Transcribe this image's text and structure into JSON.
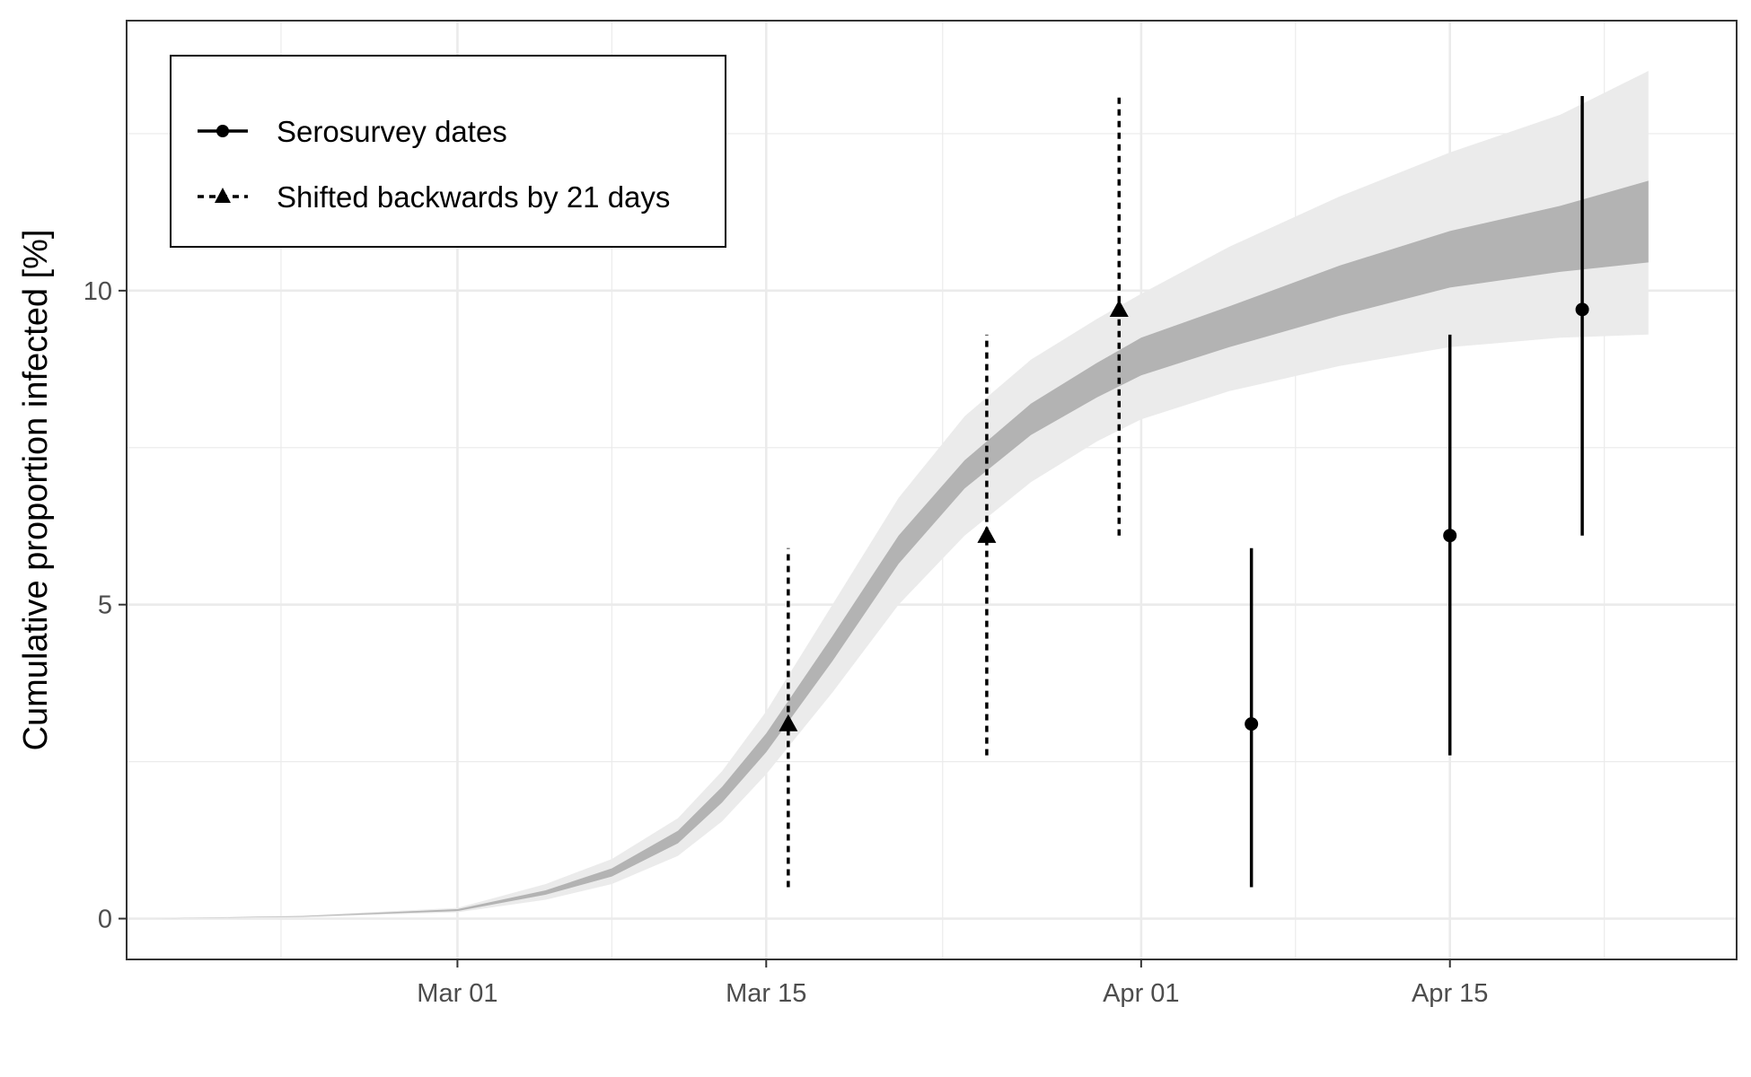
{
  "chart_data": {
    "type": "line",
    "title": "",
    "xlabel": "",
    "ylabel": "Cumulative proportion infected [%]",
    "x_type": "date",
    "xlim": [
      "2020-02-15",
      "2020-04-28"
    ],
    "ylim": [
      -0.65,
      14.3
    ],
    "x_ticks": [
      {
        "date": "2020-03-01",
        "label": "Mar 01"
      },
      {
        "date": "2020-03-15",
        "label": "Mar 15"
      },
      {
        "date": "2020-04-01",
        "label": "Apr 01"
      },
      {
        "date": "2020-04-15",
        "label": "Apr 15"
      }
    ],
    "x_minor_ticks": [
      "2020-02-22",
      "2020-03-08",
      "2020-03-23",
      "2020-04-08",
      "2020-04-22"
    ],
    "y_ticks": [
      {
        "value": 0,
        "label": "0"
      },
      {
        "value": 5,
        "label": "5"
      },
      {
        "value": 10,
        "label": "10"
      }
    ],
    "y_minor_ticks": [
      2.5,
      7.5,
      12.5
    ],
    "grid": true,
    "legend": {
      "position": "top-left",
      "entries": [
        {
          "label": "Serosurvey dates",
          "marker": "circle",
          "linestyle": "solid"
        },
        {
          "label": "Shifted backwards by 21 days",
          "marker": "triangle",
          "linestyle": "dashed"
        }
      ]
    },
    "bands": [
      {
        "role": "outer-interval",
        "color": "#ebebeb",
        "x": [
          "2020-02-16",
          "2020-02-23",
          "2020-03-01",
          "2020-03-05",
          "2020-03-08",
          "2020-03-11",
          "2020-03-13",
          "2020-03-15",
          "2020-03-18",
          "2020-03-21",
          "2020-03-24",
          "2020-03-27",
          "2020-03-30",
          "2020-04-01",
          "2020-04-05",
          "2020-04-10",
          "2020-04-15",
          "2020-04-20",
          "2020-04-24"
        ],
        "lower": [
          0.0,
          0.02,
          0.1,
          0.3,
          0.55,
          1.0,
          1.55,
          2.3,
          3.6,
          5.0,
          6.1,
          6.95,
          7.6,
          7.95,
          8.4,
          8.8,
          9.1,
          9.25,
          9.3
        ],
        "upper": [
          0.0,
          0.05,
          0.17,
          0.55,
          0.95,
          1.6,
          2.35,
          3.3,
          5.0,
          6.7,
          8.0,
          8.9,
          9.55,
          9.95,
          10.7,
          11.5,
          12.2,
          12.8,
          13.5
        ]
      },
      {
        "role": "inner-interval",
        "color": "#b3b3b3",
        "x": [
          "2020-02-16",
          "2020-02-23",
          "2020-03-01",
          "2020-03-05",
          "2020-03-08",
          "2020-03-11",
          "2020-03-13",
          "2020-03-15",
          "2020-03-18",
          "2020-03-21",
          "2020-03-24",
          "2020-03-27",
          "2020-03-30",
          "2020-04-01",
          "2020-04-05",
          "2020-04-10",
          "2020-04-15",
          "2020-04-20",
          "2020-04-24"
        ],
        "lower": [
          0.0,
          0.03,
          0.12,
          0.38,
          0.67,
          1.2,
          1.85,
          2.65,
          4.1,
          5.65,
          6.85,
          7.7,
          8.3,
          8.65,
          9.1,
          9.6,
          10.05,
          10.3,
          10.45
        ],
        "upper": [
          0.0,
          0.04,
          0.15,
          0.45,
          0.8,
          1.4,
          2.1,
          2.95,
          4.5,
          6.1,
          7.3,
          8.2,
          8.85,
          9.25,
          9.75,
          10.4,
          10.95,
          11.35,
          11.75
        ]
      }
    ],
    "series": [
      {
        "name": "Serosurvey dates",
        "marker": "circle",
        "linestyle": "solid",
        "points": [
          {
            "x": "2020-04-06",
            "y": 3.1,
            "lower": 0.5,
            "upper": 5.9
          },
          {
            "x": "2020-04-15",
            "y": 6.1,
            "lower": 2.6,
            "upper": 9.3
          },
          {
            "x": "2020-04-21",
            "y": 9.7,
            "lower": 6.1,
            "upper": 13.1
          }
        ]
      },
      {
        "name": "Shifted backwards by 21 days",
        "marker": "triangle",
        "linestyle": "dashed",
        "points": [
          {
            "x": "2020-03-16",
            "y": 3.1,
            "lower": 0.5,
            "upper": 5.9
          },
          {
            "x": "2020-03-25",
            "y": 6.1,
            "lower": 2.6,
            "upper": 9.3
          },
          {
            "x": "2020-03-31",
            "y": 9.7,
            "lower": 6.1,
            "upper": 13.1
          }
        ]
      }
    ]
  }
}
